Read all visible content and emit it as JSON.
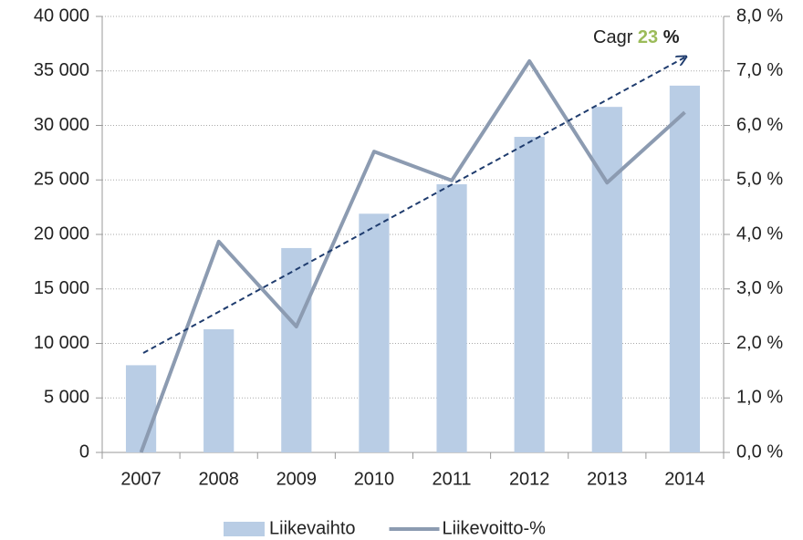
{
  "chart_data": {
    "type": "bar-line",
    "categories": [
      "2007",
      "2008",
      "2009",
      "2010",
      "2011",
      "2012",
      "2013",
      "2014"
    ],
    "series": [
      {
        "name": "Liikevaihto",
        "type": "bar",
        "color": "#b9cde5",
        "values": [
          8000,
          11300,
          18750,
          21900,
          24600,
          28950,
          31700,
          33650
        ]
      },
      {
        "name": "Liikevoitto-%",
        "type": "line",
        "axis": "y2",
        "color": "#8c9bb1",
        "values": [
          0.0,
          3.87,
          2.31,
          5.52,
          4.99,
          7.18,
          4.95,
          6.24
        ]
      }
    ],
    "ylim": [
      0,
      40000
    ],
    "yticks": [
      {
        "value": 0,
        "label": "0"
      },
      {
        "value": 5000,
        "label": "5 000"
      },
      {
        "value": 10000,
        "label": "10 000"
      },
      {
        "value": 15000,
        "label": "15 000"
      },
      {
        "value": 20000,
        "label": "20 000"
      },
      {
        "value": 25000,
        "label": "25 000"
      },
      {
        "value": 30000,
        "label": "30 000"
      },
      {
        "value": 35000,
        "label": "35 000"
      },
      {
        "value": 40000,
        "label": "40 000"
      }
    ],
    "y2lim": [
      0,
      8
    ],
    "y2ticks": [
      {
        "value": 0,
        "label": "0,0 %"
      },
      {
        "value": 1,
        "label": "1,0 %"
      },
      {
        "value": 2,
        "label": "2,0 %"
      },
      {
        "value": 3,
        "label": "3,0 %"
      },
      {
        "value": 4,
        "label": "4,0 %"
      },
      {
        "value": 5,
        "label": "5,0 %"
      },
      {
        "value": 6,
        "label": "6,0 %"
      },
      {
        "value": 7,
        "label": "7,0 %"
      },
      {
        "value": 8,
        "label": "8,0 %"
      }
    ],
    "grid": true,
    "legend": "bottom",
    "annotation": {
      "prefix": "Cagr",
      "value": "23",
      "suffix": "%"
    }
  }
}
